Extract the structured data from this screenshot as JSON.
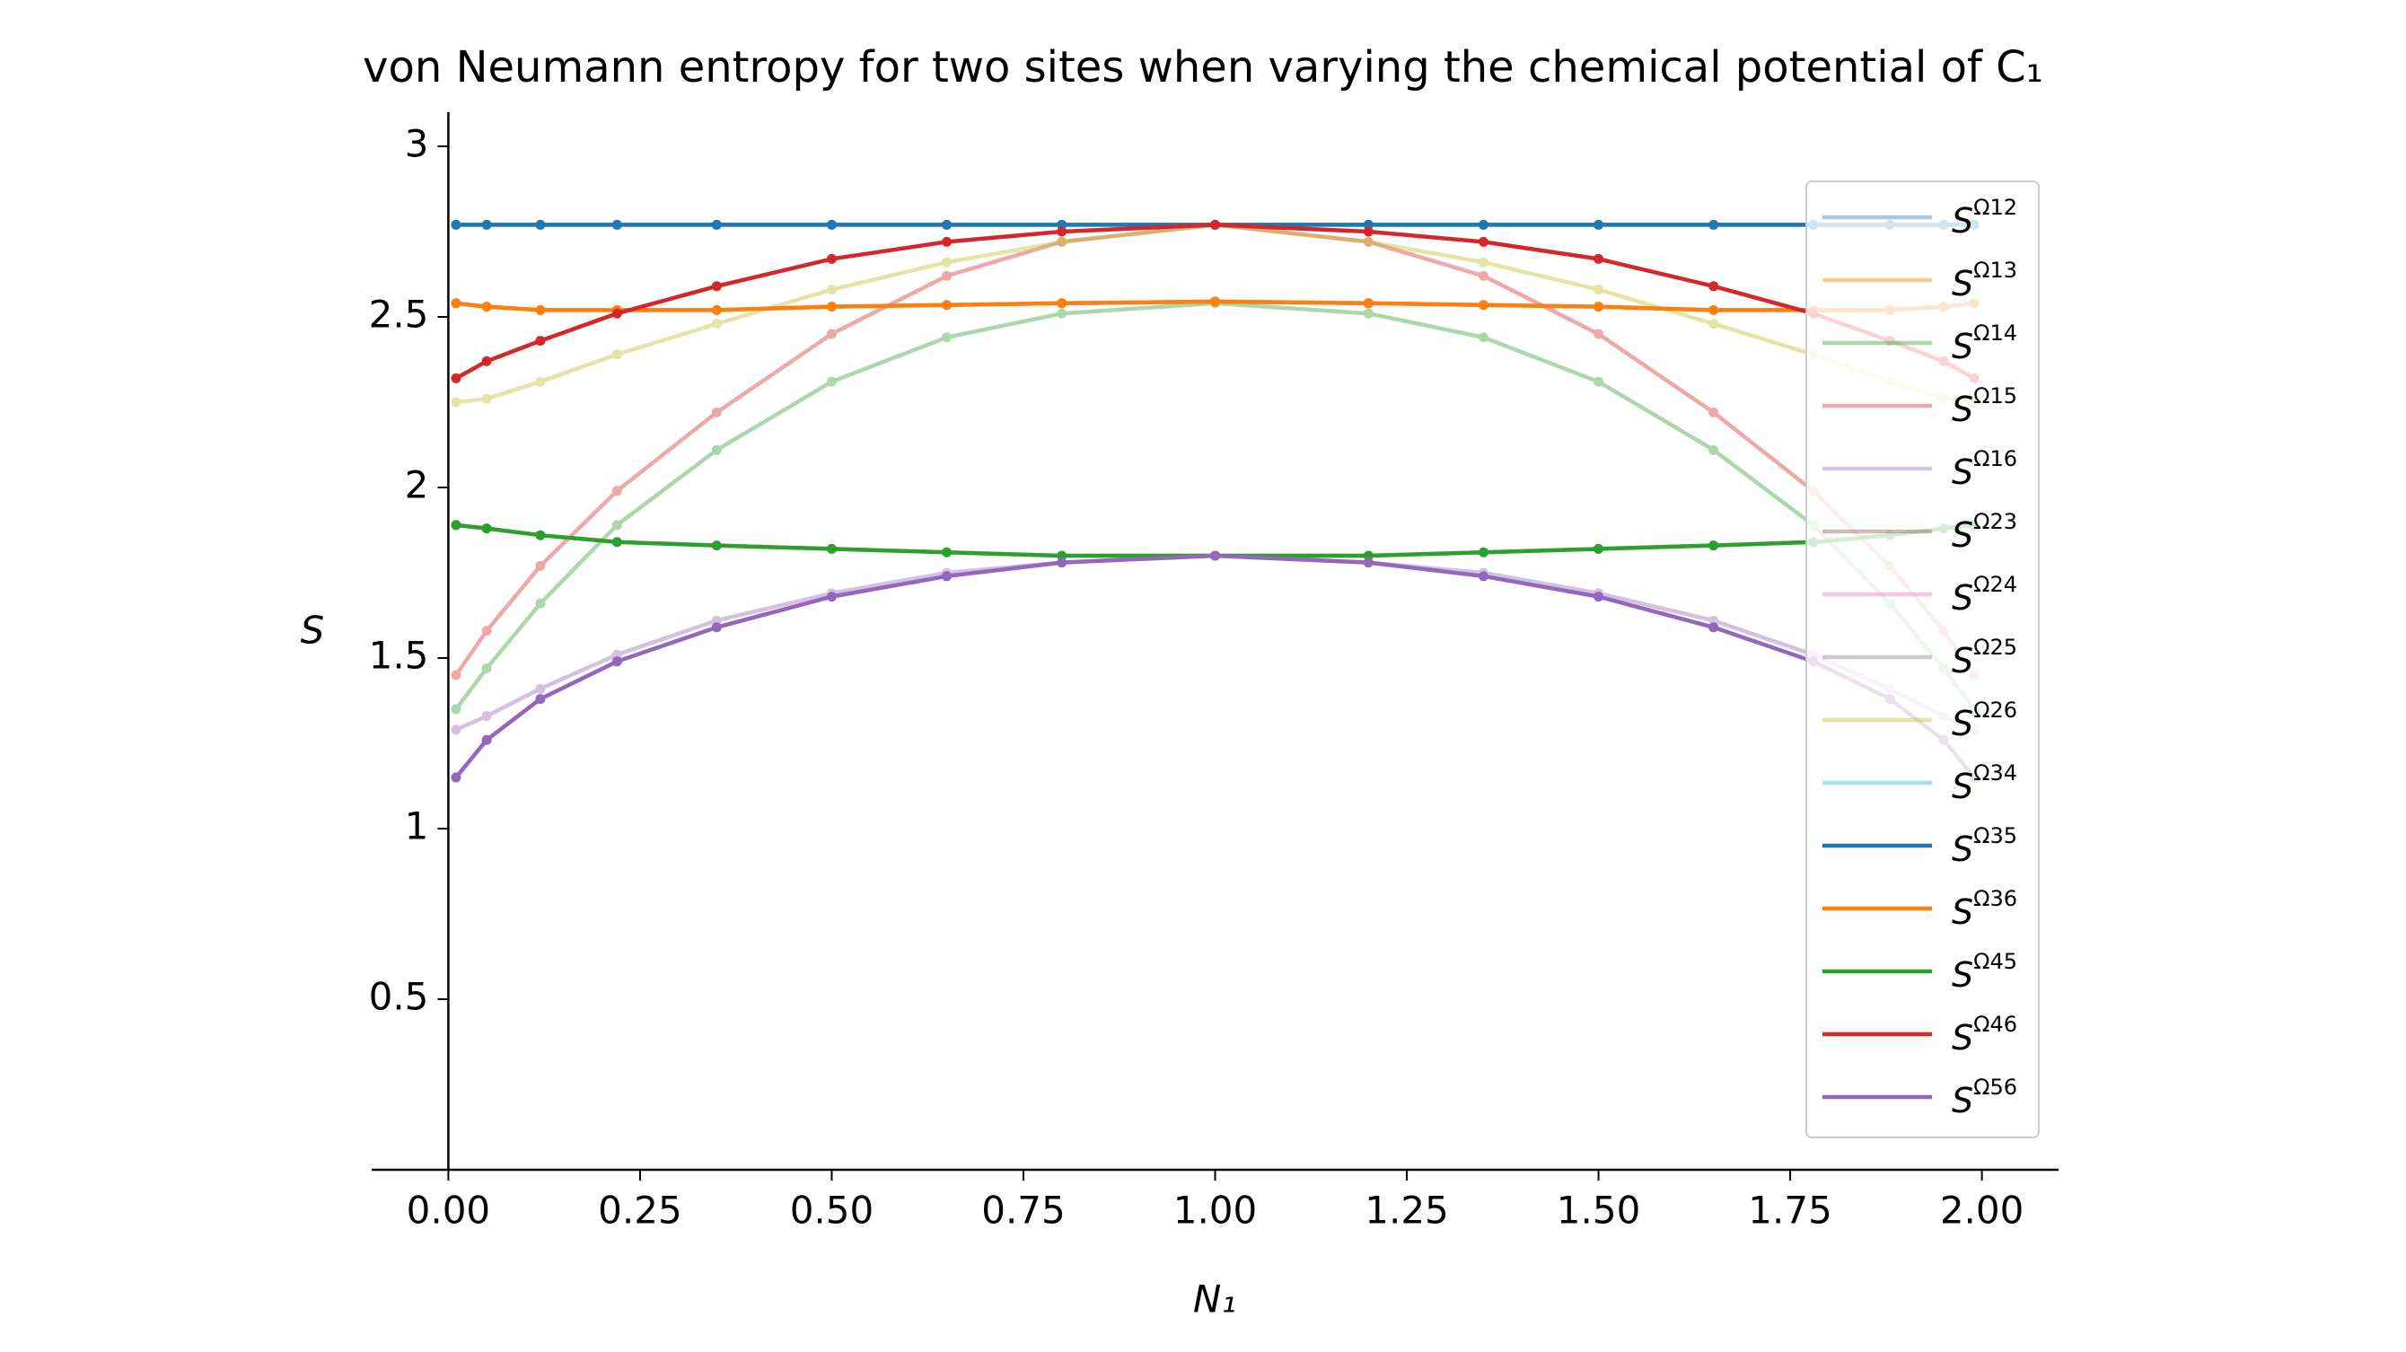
{
  "chart_data": {
    "type": "line",
    "title": "von Neumann entropy for two sites when varying the chemical potential of C₁",
    "xlabel": "N₁",
    "ylabel": "S",
    "x": [
      0.01,
      0.05,
      0.12,
      0.22,
      0.35,
      0.5,
      0.65,
      0.8,
      1.0,
      1.2,
      1.35,
      1.5,
      1.65,
      1.78,
      1.88,
      1.95,
      1.99
    ],
    "xlim": [
      -0.1,
      2.1
    ],
    "ylim": [
      0,
      3.1
    ],
    "xticks": [
      {
        "value": 0,
        "label": "0.00"
      },
      {
        "value": 0.25,
        "label": "0.25"
      },
      {
        "value": 0.5,
        "label": "0.50"
      },
      {
        "value": 0.75,
        "label": "0.75"
      },
      {
        "value": 1,
        "label": "1.00"
      },
      {
        "value": 1.25,
        "label": "1.25"
      },
      {
        "value": 1.5,
        "label": "1.50"
      },
      {
        "value": 1.75,
        "label": "1.75"
      },
      {
        "value": 2,
        "label": "2.00"
      }
    ],
    "yticks": [
      0.5,
      1,
      1.5,
      2,
      2.5,
      3
    ],
    "legend": "right",
    "series": [
      {
        "name": "SΩ12",
        "color": "#1f77b4",
        "opacity": 0.4,
        "values": [
          2.77,
          2.77,
          2.77,
          2.77,
          2.77,
          2.77,
          2.77,
          2.77,
          2.77,
          2.77,
          2.77,
          2.77,
          2.77,
          2.77,
          2.77,
          2.77,
          2.77
        ]
      },
      {
        "name": "SΩ13",
        "color": "#ff7f0e",
        "opacity": 0.4,
        "values": [
          2.54,
          2.53,
          2.52,
          2.52,
          2.52,
          2.53,
          2.535,
          2.54,
          2.545,
          2.54,
          2.535,
          2.53,
          2.52,
          2.52,
          2.52,
          2.53,
          2.54
        ]
      },
      {
        "name": "SΩ14",
        "color": "#2ca02c",
        "opacity": 0.4,
        "values": [
          1.35,
          1.47,
          1.66,
          1.89,
          2.11,
          2.31,
          2.44,
          2.51,
          2.54,
          2.51,
          2.44,
          2.31,
          2.11,
          1.89,
          1.66,
          1.47,
          1.35
        ]
      },
      {
        "name": "SΩ15",
        "color": "#d62728",
        "opacity": 0.4,
        "values": [
          1.45,
          1.58,
          1.77,
          1.99,
          2.22,
          2.45,
          2.62,
          2.72,
          2.77,
          2.72,
          2.62,
          2.45,
          2.22,
          1.99,
          1.77,
          1.58,
          1.45
        ]
      },
      {
        "name": "SΩ16",
        "color": "#9467bd",
        "opacity": 0.4,
        "values": [
          1.29,
          1.33,
          1.41,
          1.51,
          1.61,
          1.69,
          1.75,
          1.78,
          1.8,
          1.78,
          1.75,
          1.69,
          1.61,
          1.51,
          1.41,
          1.33,
          1.29
        ]
      },
      {
        "name": "SΩ23",
        "color": "#8c564b",
        "opacity": 0.4,
        "values": [
          1.89,
          1.88,
          1.86,
          1.84,
          1.83,
          1.82,
          1.81,
          1.8,
          1.8,
          1.8,
          1.81,
          1.82,
          1.83,
          1.84,
          1.86,
          1.88,
          1.89
        ]
      },
      {
        "name": "SΩ24",
        "color": "#e377c2",
        "opacity": 0.4,
        "values": [
          1.15,
          1.26,
          1.38,
          1.49,
          1.59,
          1.68,
          1.74,
          1.78,
          1.8,
          1.78,
          1.74,
          1.68,
          1.59,
          1.49,
          1.38,
          1.26,
          1.15
        ]
      },
      {
        "name": "SΩ25",
        "color": "#7f7f7f",
        "opacity": 0.4,
        "values": [
          2.54,
          2.53,
          2.52,
          2.52,
          2.52,
          2.53,
          2.535,
          2.54,
          2.545,
          2.54,
          2.535,
          2.53,
          2.52,
          2.52,
          2.52,
          2.53,
          2.54
        ]
      },
      {
        "name": "SΩ26",
        "color": "#bcbd22",
        "opacity": 0.4,
        "values": [
          2.25,
          2.26,
          2.31,
          2.39,
          2.48,
          2.58,
          2.66,
          2.72,
          2.77,
          2.72,
          2.66,
          2.58,
          2.48,
          2.39,
          2.31,
          2.26,
          2.25
        ]
      },
      {
        "name": "SΩ34",
        "color": "#17becf",
        "opacity": 0.4,
        "values": [
          2.77,
          2.77,
          2.77,
          2.77,
          2.77,
          2.77,
          2.77,
          2.77,
          2.77,
          2.77,
          2.77,
          2.77,
          2.77,
          2.77,
          2.77,
          2.77,
          2.77
        ]
      },
      {
        "name": "SΩ35",
        "color": "#1f77b4",
        "opacity": 1,
        "values": [
          2.77,
          2.77,
          2.77,
          2.77,
          2.77,
          2.77,
          2.77,
          2.77,
          2.77,
          2.77,
          2.77,
          2.77,
          2.77,
          2.77,
          2.77,
          2.77,
          2.77
        ]
      },
      {
        "name": "SΩ36",
        "color": "#ff7f0e",
        "opacity": 1,
        "values": [
          2.54,
          2.53,
          2.52,
          2.52,
          2.52,
          2.53,
          2.535,
          2.54,
          2.545,
          2.54,
          2.535,
          2.53,
          2.52,
          2.52,
          2.52,
          2.53,
          2.54
        ]
      },
      {
        "name": "SΩ45",
        "color": "#2ca02c",
        "opacity": 1,
        "values": [
          1.89,
          1.88,
          1.86,
          1.84,
          1.83,
          1.82,
          1.81,
          1.8,
          1.8,
          1.8,
          1.81,
          1.82,
          1.83,
          1.84,
          1.86,
          1.88,
          1.89
        ]
      },
      {
        "name": "SΩ46",
        "color": "#d62728",
        "opacity": 1,
        "values": [
          2.32,
          2.37,
          2.43,
          2.51,
          2.59,
          2.67,
          2.72,
          2.75,
          2.77,
          2.75,
          2.72,
          2.67,
          2.59,
          2.51,
          2.43,
          2.37,
          2.32
        ]
      },
      {
        "name": "SΩ56",
        "color": "#9467bd",
        "opacity": 1,
        "values": [
          1.15,
          1.26,
          1.38,
          1.49,
          1.59,
          1.68,
          1.74,
          1.78,
          1.8,
          1.78,
          1.74,
          1.68,
          1.59,
          1.49,
          1.38,
          1.26,
          1.15
        ]
      }
    ]
  }
}
